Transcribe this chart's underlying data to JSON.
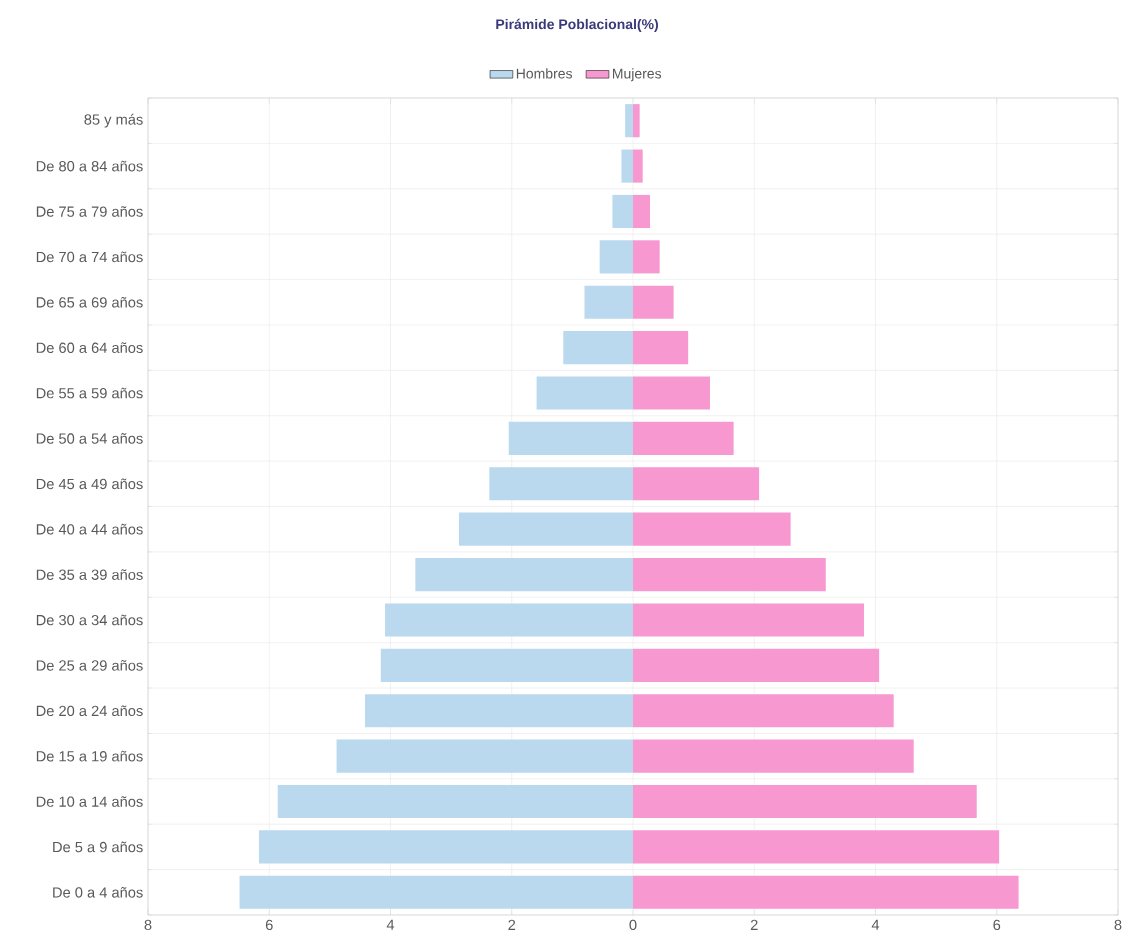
{
  "chart_data": {
    "type": "bar",
    "orientation": "horizontal",
    "title": "Pirámide Poblacional(%)",
    "categories": [
      "85 y más",
      "De 80 a 84 años",
      "De 75 a 79 años",
      "De 70 a 74 años",
      "De 65 a 69 años",
      "De 60 a 64 años",
      "De 55 a 59 años",
      "De 50 a 54 años",
      "De 45 a 49 años",
      "De 40 a 44 años",
      "De 35 a 39 años",
      "De 30 a 34 años",
      "De 25 a 29 años",
      "De 20 a 24 años",
      "De 15 a 19 años",
      "De 10 a 14 años",
      "De 5 a 9 años",
      "De 0 a 4 años"
    ],
    "series": [
      {
        "name": "Hombres",
        "color": "#bad9ee",
        "values": [
          -0.13,
          -0.19,
          -0.34,
          -0.55,
          -0.8,
          -1.15,
          -1.59,
          -2.05,
          -2.37,
          -2.87,
          -3.59,
          -4.09,
          -4.16,
          -4.42,
          -4.89,
          -5.86,
          -6.17,
          -6.49
        ]
      },
      {
        "name": "Mujeres",
        "color": "#f799d0",
        "values": [
          0.11,
          0.16,
          0.28,
          0.44,
          0.67,
          0.91,
          1.27,
          1.66,
          2.08,
          2.6,
          3.18,
          3.81,
          4.06,
          4.3,
          4.63,
          5.67,
          6.04,
          6.36
        ]
      }
    ],
    "xlim": [
      -8,
      8
    ],
    "xticks": [
      {
        "value": -8,
        "label": "8"
      },
      {
        "value": -6,
        "label": "6"
      },
      {
        "value": -4,
        "label": "4"
      },
      {
        "value": -2,
        "label": "2"
      },
      0,
      2,
      4,
      6,
      8
    ],
    "stacked": true,
    "grid": true,
    "legend": "top"
  }
}
